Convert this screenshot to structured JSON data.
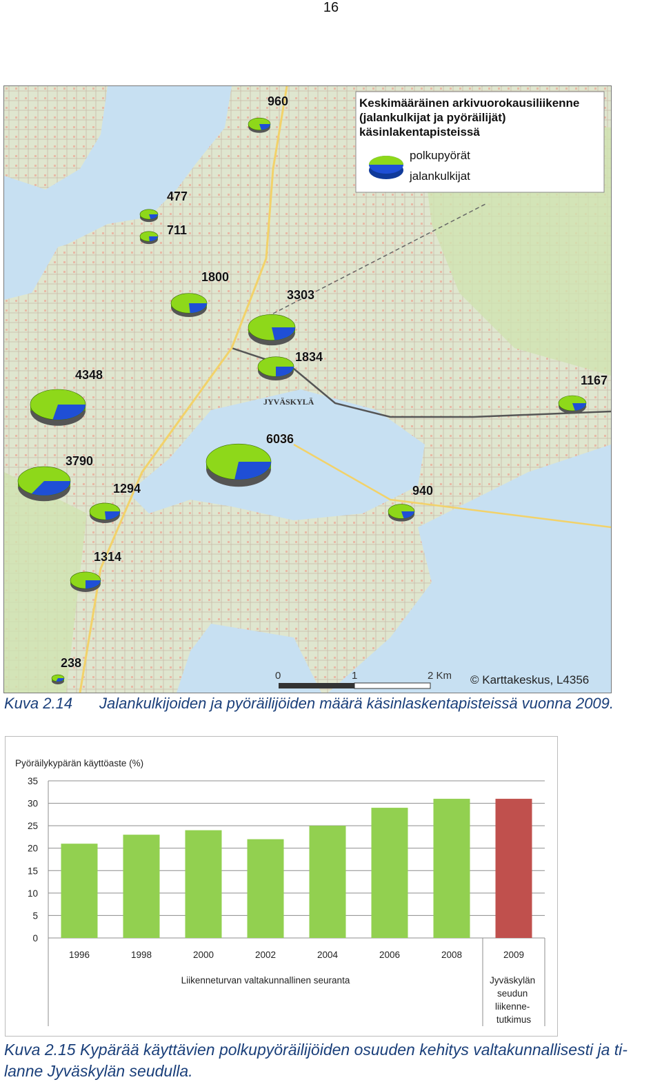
{
  "page_number": "16",
  "map": {
    "legend": {
      "title_lines": [
        "Keskimääräinen arkivuorokausiliikenne",
        "(jalankulkijat ja pyöräilijät)",
        "käsinlakentapisteissä"
      ],
      "item_bikes": "polkupyörät",
      "item_walkers": "jalankulkijat"
    },
    "place_name": "JYVÄSKYLÄ",
    "counts": [
      "960",
      "477",
      "711",
      "1800",
      "3303",
      "1834",
      "4348",
      "1167",
      "6036",
      "3790",
      "1294",
      "940",
      "1314",
      "238"
    ],
    "scale_labels": [
      "0",
      "1",
      "2 Km"
    ],
    "copyright": "© Karttakeskus, L4356",
    "colors": {
      "bikes": "#8ed81a",
      "walkers": "#1f4fd6",
      "water": "#c7e0f2",
      "land": "#dbe8c5"
    }
  },
  "caption1": {
    "label": "Kuva 2.14",
    "text": "Jalankulkijoiden ja pyöräilijöiden määrä käsinlaskentapisteissä vuonna 2009."
  },
  "chart_data": {
    "type": "bar",
    "title": "Pyöräilykypärän käyttöaste (%)",
    "categories": [
      "1996",
      "1998",
      "2000",
      "2002",
      "2004",
      "2006",
      "2008",
      "2009"
    ],
    "values": [
      21,
      23,
      24,
      22,
      25,
      29,
      31,
      31
    ],
    "ylim": [
      0,
      35
    ],
    "yticks": [
      "0",
      "5",
      "10",
      "15",
      "20",
      "25",
      "30",
      "35"
    ],
    "group_labels": [
      "Liikenneturvan valtakunnallinen seuranta",
      "Jyväskylän seudun liikenne-tutkimus"
    ],
    "group_label_2_lines": [
      "Jyväskylän",
      "seudun",
      "liikenne-",
      "tutkimus"
    ],
    "colors": {
      "national": "#92d050",
      "regional": "#c0504d"
    },
    "grid": true
  },
  "caption2": {
    "text": "Kuva 2.15 Kypärää käyttävien polkupyöräilijöiden osuuden kehitys valtakunnallisesti ja ti-",
    "text_line2": "lanne Jyväskylän seudulla."
  }
}
